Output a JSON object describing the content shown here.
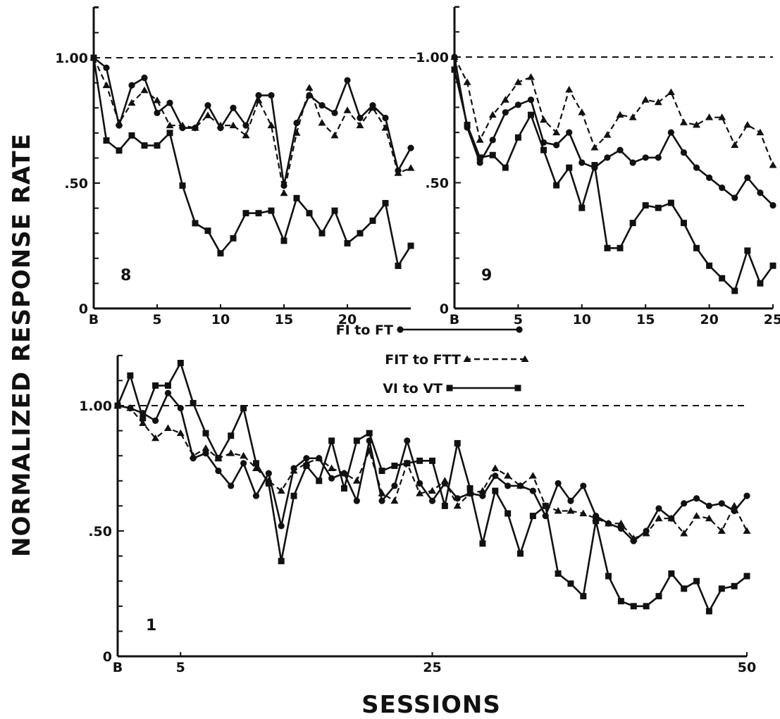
{
  "figure": {
    "ylabel": "NORMALIZED RESPONSE RATE",
    "xlabel": "SESSIONS"
  },
  "legend": [
    {
      "label": "FI to FT",
      "series": "FI to FT"
    },
    {
      "label": "FIT to FTT",
      "series": "FIT to FTT"
    },
    {
      "label": "VI to VT",
      "series": "VI to VT"
    }
  ],
  "chart_data": [
    {
      "type": "line",
      "panel_label": "8",
      "xlim": [
        0,
        25
      ],
      "ylim": [
        0,
        1.2
      ],
      "xticks": [
        {
          "v": 0,
          "label": "B"
        },
        {
          "v": 5,
          "label": "5"
        },
        {
          "v": 10,
          "label": "10"
        },
        {
          "v": 15,
          "label": "15"
        },
        {
          "v": 20,
          "label": "20"
        }
      ],
      "yticks": [
        {
          "v": 0,
          "label": "0"
        },
        {
          "v": 0.5,
          "label": ".50"
        },
        {
          "v": 1.0,
          "label": "1.00"
        }
      ],
      "reference_line": 1.0,
      "x": [
        0,
        1,
        2,
        3,
        4,
        5,
        6,
        7,
        8,
        9,
        10,
        11,
        12,
        13,
        14,
        15,
        16,
        17,
        18,
        19,
        20,
        21,
        22,
        23,
        24,
        25
      ],
      "series": [
        {
          "name": "FI to FT",
          "marker": "circle",
          "dash": "solid",
          "values": [
            1.0,
            0.96,
            0.73,
            0.89,
            0.92,
            0.78,
            0.82,
            0.72,
            0.72,
            0.81,
            0.72,
            0.8,
            0.73,
            0.85,
            0.85,
            0.49,
            0.74,
            0.85,
            0.81,
            0.78,
            0.91,
            0.76,
            0.81,
            0.76,
            0.55,
            0.64
          ]
        },
        {
          "name": "FIT to FTT",
          "marker": "triangle",
          "dash": "dashed",
          "values": [
            1.0,
            0.89,
            0.74,
            0.82,
            0.87,
            0.83,
            0.73,
            0.73,
            0.72,
            0.77,
            0.73,
            0.73,
            0.69,
            0.83,
            0.73,
            0.46,
            0.7,
            0.88,
            0.74,
            0.69,
            0.79,
            0.73,
            0.8,
            0.72,
            0.54,
            0.56
          ]
        },
        {
          "name": "VI to VT",
          "marker": "square",
          "dash": "solid",
          "values": [
            1.0,
            0.67,
            0.63,
            0.69,
            0.65,
            0.65,
            0.7,
            0.49,
            0.34,
            0.31,
            0.22,
            0.28,
            0.38,
            0.38,
            0.39,
            0.27,
            0.44,
            0.38,
            0.3,
            0.39,
            0.26,
            0.3,
            0.35,
            0.42,
            0.17,
            0.25
          ]
        }
      ]
    },
    {
      "type": "line",
      "panel_label": "9",
      "xlim": [
        0,
        25
      ],
      "ylim": [
        0,
        1.2
      ],
      "xticks": [
        {
          "v": 0,
          "label": "B"
        },
        {
          "v": 5,
          "label": "5"
        },
        {
          "v": 10,
          "label": "10"
        },
        {
          "v": 15,
          "label": "15"
        },
        {
          "v": 20,
          "label": "20"
        },
        {
          "v": 25,
          "label": "25"
        }
      ],
      "yticks": [
        {
          "v": 0,
          "label": "0"
        },
        {
          "v": 0.5,
          "label": ".50"
        },
        {
          "v": 1.0,
          "label": "1.00"
        }
      ],
      "reference_line": 1.0,
      "x": [
        0,
        1,
        2,
        3,
        4,
        5,
        6,
        7,
        8,
        9,
        10,
        11,
        12,
        13,
        14,
        15,
        16,
        17,
        18,
        19,
        20,
        21,
        22,
        23,
        24,
        25
      ],
      "series": [
        {
          "name": "FI to FT",
          "marker": "circle",
          "dash": "solid",
          "values": [
            1.0,
            0.72,
            0.58,
            0.67,
            0.78,
            0.81,
            0.83,
            0.66,
            0.65,
            0.7,
            0.58,
            0.56,
            0.6,
            0.63,
            0.58,
            0.6,
            0.6,
            0.7,
            0.62,
            0.56,
            0.52,
            0.48,
            0.44,
            0.52,
            0.46,
            0.41
          ]
        },
        {
          "name": "FIT to FTT",
          "marker": "triangle",
          "dash": "dashed",
          "values": [
            1.0,
            0.9,
            0.67,
            0.77,
            0.83,
            0.9,
            0.92,
            0.75,
            0.7,
            0.87,
            0.78,
            0.64,
            0.69,
            0.77,
            0.76,
            0.83,
            0.82,
            0.86,
            0.74,
            0.73,
            0.76,
            0.76,
            0.65,
            0.73,
            0.7,
            0.57
          ]
        },
        {
          "name": "VI to VT",
          "marker": "square",
          "dash": "solid",
          "values": [
            0.95,
            0.73,
            0.6,
            0.61,
            0.56,
            0.68,
            0.77,
            0.63,
            0.49,
            0.56,
            0.4,
            0.57,
            0.24,
            0.24,
            0.34,
            0.41,
            0.4,
            0.42,
            0.34,
            0.24,
            0.17,
            0.12,
            0.07,
            0.23,
            0.1,
            0.17
          ]
        }
      ]
    },
    {
      "type": "line",
      "panel_label": "1",
      "xlim": [
        0,
        50
      ],
      "ylim": [
        0,
        1.2
      ],
      "xticks": [
        {
          "v": 0,
          "label": "B"
        },
        {
          "v": 5,
          "label": "5"
        },
        {
          "v": 25,
          "label": "25"
        },
        {
          "v": 50,
          "label": "50"
        }
      ],
      "yticks": [
        {
          "v": 0,
          "label": "0"
        },
        {
          "v": 0.5,
          "label": ".50"
        },
        {
          "v": 1.0,
          "label": "1.00"
        }
      ],
      "reference_line": 1.0,
      "x": [
        0,
        1,
        2,
        3,
        4,
        5,
        6,
        7,
        8,
        9,
        10,
        11,
        12,
        13,
        14,
        15,
        16,
        17,
        18,
        19,
        20,
        21,
        22,
        23,
        24,
        25,
        26,
        27,
        28,
        29,
        30,
        31,
        32,
        33,
        34,
        35,
        36,
        37,
        38,
        39,
        40,
        41,
        42,
        43,
        44,
        45,
        46,
        47,
        48,
        49,
        50
      ],
      "series": [
        {
          "name": "FI to FT",
          "marker": "circle",
          "dash": "solid",
          "values": [
            1.0,
            0.99,
            0.97,
            0.94,
            1.05,
            0.99,
            0.79,
            0.81,
            0.74,
            0.68,
            0.77,
            0.64,
            0.73,
            0.52,
            0.75,
            0.79,
            0.79,
            0.71,
            0.73,
            0.62,
            0.86,
            0.62,
            0.68,
            0.86,
            0.69,
            0.62,
            0.69,
            0.63,
            0.65,
            0.64,
            0.72,
            0.68,
            0.68,
            0.66,
            0.56,
            0.69,
            0.62,
            0.68,
            0.56,
            0.53,
            0.51,
            0.46,
            0.5,
            0.59,
            0.55,
            0.61,
            0.63,
            0.6,
            0.61,
            0.58,
            0.64
          ]
        },
        {
          "name": "FIT to FTT",
          "marker": "triangle",
          "dash": "dashed",
          "values": [
            1.0,
            0.99,
            0.93,
            0.87,
            0.91,
            0.89,
            0.8,
            0.83,
            0.79,
            0.81,
            0.8,
            0.75,
            0.7,
            0.66,
            0.74,
            0.77,
            0.79,
            0.75,
            0.73,
            0.7,
            0.82,
            0.65,
            0.62,
            0.77,
            0.65,
            0.66,
            0.7,
            0.6,
            0.65,
            0.66,
            0.75,
            0.72,
            0.68,
            0.72,
            0.6,
            0.58,
            0.58,
            0.57,
            0.55,
            0.53,
            0.53,
            0.47,
            0.49,
            0.55,
            0.55,
            0.49,
            0.56,
            0.55,
            0.5,
            0.6,
            0.5
          ]
        },
        {
          "name": "VI to VT",
          "marker": "square",
          "dash": "solid",
          "values": [
            1.0,
            1.12,
            0.95,
            1.08,
            1.08,
            1.17,
            1.01,
            0.89,
            0.79,
            0.88,
            0.99,
            0.77,
            0.69,
            0.38,
            0.64,
            0.76,
            0.7,
            0.86,
            0.67,
            0.86,
            0.89,
            0.74,
            0.76,
            0.77,
            0.78,
            0.78,
            0.6,
            0.85,
            0.67,
            0.45,
            0.66,
            0.57,
            0.41,
            0.56,
            0.6,
            0.33,
            0.29,
            0.24,
            0.54,
            0.32,
            0.22,
            0.2,
            0.2,
            0.24,
            0.33,
            0.27,
            0.3,
            0.18,
            0.27,
            0.28,
            0.32
          ]
        }
      ]
    }
  ]
}
